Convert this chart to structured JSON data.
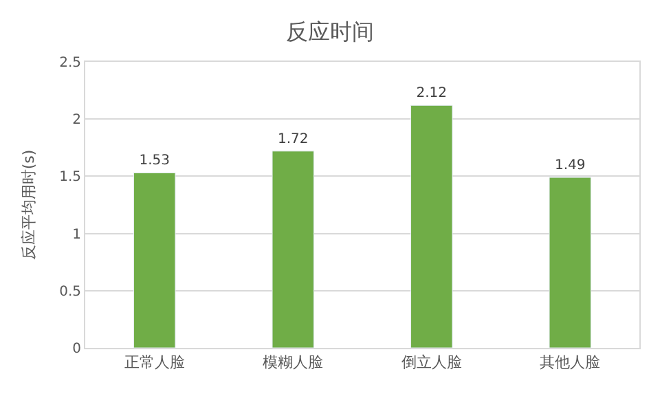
{
  "chart_data": {
    "type": "bar",
    "title": "反应时间",
    "ylabel": "反应平均用时(s)",
    "categories": [
      "正常人脸",
      "模糊人脸",
      "倒立人脸",
      "其他人脸"
    ],
    "values": [
      1.53,
      1.72,
      2.12,
      1.49
    ],
    "color": "#70ad47",
    "ylim": [
      0,
      2.5
    ],
    "yticks": [
      0,
      0.5,
      1,
      1.5,
      2,
      2.5
    ],
    "grid": "y",
    "data_labels": true,
    "legend": false
  }
}
